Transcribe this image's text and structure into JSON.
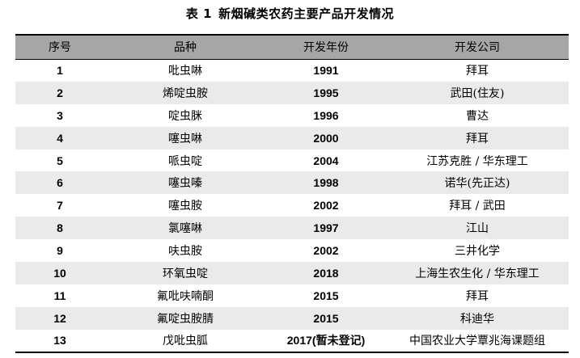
{
  "caption": {
    "label": "表 1",
    "title": "新烟碱类农药主要产品开发情况"
  },
  "table": {
    "headers": [
      "序号",
      "品种",
      "开发年份",
      "开发公司"
    ],
    "rows": [
      {
        "no": "1",
        "name": "吡虫啉",
        "year": "1991",
        "company": "拜耳"
      },
      {
        "no": "2",
        "name": "烯啶虫胺",
        "year": "1995",
        "company": "武田(住友)"
      },
      {
        "no": "3",
        "name": "啶虫脒",
        "year": "1996",
        "company": "曹达"
      },
      {
        "no": "4",
        "name": "噻虫啉",
        "year": "2000",
        "company": "拜耳"
      },
      {
        "no": "5",
        "name": "哌虫啶",
        "year": "2004",
        "company": "江苏克胜 / 华东理工"
      },
      {
        "no": "6",
        "name": "噻虫嗪",
        "year": "1998",
        "company": "诺华(先正达)"
      },
      {
        "no": "7",
        "name": "噻虫胺",
        "year": "2002",
        "company": "拜耳 / 武田"
      },
      {
        "no": "8",
        "name": "氯噻啉",
        "year": "1997",
        "company": "江山"
      },
      {
        "no": "9",
        "name": "呋虫胺",
        "year": "2002",
        "company": "三井化学"
      },
      {
        "no": "10",
        "name": "环氧虫啶",
        "year": "2018",
        "company": "上海生农生化 / 华东理工"
      },
      {
        "no": "11",
        "name": "氟吡呋喃酮",
        "year": "2015",
        "company": "拜耳"
      },
      {
        "no": "12",
        "name": "氟啶虫胺腈",
        "year": "2015",
        "company": "科迪华"
      },
      {
        "no": "13",
        "name": "戊吡虫胍",
        "year": "2017(暂未登记)",
        "company": "中国农业大学覃兆海课题组"
      }
    ]
  }
}
